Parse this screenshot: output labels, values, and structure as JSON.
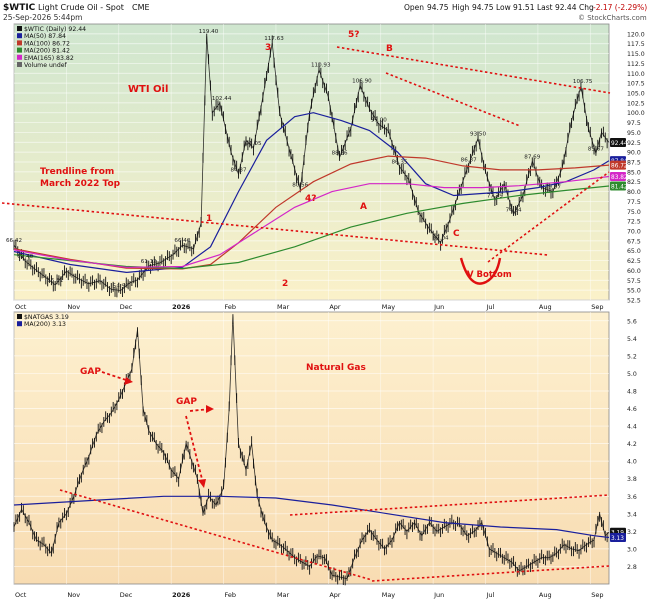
{
  "header": {
    "symbol": "$WTIC",
    "name": "Light Crude Oil - Spot",
    "exchange": "CME",
    "datetime": "25-Sep-2026 5:44pm",
    "open_label": "Open",
    "open": "94.75",
    "high_label": "High",
    "high": "94.75",
    "low_label": "Low",
    "low": "91.51",
    "last_label": "Last",
    "last": "92.44",
    "chg_label": "Chg",
    "chg": "-2.17 (-2.29%)",
    "watermark": "© StockCharts.com"
  },
  "colors": {
    "price": "#111111",
    "ma50": "#1a1f9c",
    "ma100": "#c0392b",
    "ma200": "#2e8b2e",
    "ema165": "#d426c8",
    "annot": "#e01010",
    "panel_top": "#d6ecd6",
    "panel_bot": "#fbe8c6"
  },
  "legends": {
    "top": [
      {
        "text": "$WTIC (Daily) 92.44",
        "color": "#111111"
      },
      {
        "text": "MA(50) 87.84",
        "color": "#1a1f9c"
      },
      {
        "text": "MA(100) 86.72",
        "color": "#c0392b"
      },
      {
        "text": "MA(200) 81.42",
        "color": "#2e8b2e"
      },
      {
        "text": "EMA(165) 83.82",
        "color": "#d426c8"
      },
      {
        "text": "Volume undef",
        "color": "#666666"
      }
    ],
    "bottom": [
      {
        "text": "$NATGAS 3.19",
        "color": "#111111"
      },
      {
        "text": "MA(200) 3.13",
        "color": "#1a1f9c"
      }
    ]
  },
  "x_axis": {
    "months": [
      "Oct",
      "Nov",
      "Dec",
      "2026",
      "Feb",
      "Mar",
      "Apr",
      "May",
      "Jun",
      "Jul",
      "Aug",
      "Sep"
    ]
  },
  "annotations_top": {
    "title": "WTI Oil",
    "trendline_label_1": "Trendline from",
    "trendline_label_2": "March 2022 Top",
    "wave_labels": [
      "1",
      "2",
      "3",
      "4?",
      "5?",
      "A",
      "B",
      "C"
    ],
    "v_bottom": "V Bottom"
  },
  "annotations_bottom": {
    "title": "Natural Gas",
    "gap1": "GAP",
    "gap2": "GAP"
  },
  "chart_data": [
    {
      "type": "line",
      "title": "$WTIC Light Crude Oil - Spot (Daily)",
      "ylabel": "",
      "ylim": [
        52.5,
        122.5
      ],
      "ytick_labels": [
        "52.5",
        "55.0",
        "57.5",
        "60.0",
        "62.5",
        "65.0",
        "67.5",
        "70.0",
        "72.5",
        "75.0",
        "77.5",
        "80.0",
        "82.5",
        "85.0",
        "87.5",
        "90.0",
        "92.5",
        "95.0",
        "97.5",
        "100.0",
        "102.5",
        "105.0",
        "107.5",
        "110.0",
        "112.5",
        "115.0",
        "117.5",
        "120.0"
      ],
      "price_tags": [
        {
          "value": "92.44",
          "color": "#111111"
        },
        {
          "value": "87.84",
          "color": "#1a1f9c"
        },
        {
          "value": "86.72",
          "color": "#c0392b"
        },
        {
          "value": "83.82",
          "color": "#d426c8"
        },
        {
          "value": "81.42",
          "color": "#2e8b2e"
        }
      ],
      "price_labels": [
        "66.42",
        "62.40",
        "56.31",
        "54.90",
        "61.12",
        "66.40",
        "119.40",
        "102.44",
        "84.37",
        "91.05",
        "117.63",
        "80.56",
        "110.93",
        "88.66",
        "106.90",
        "97.00",
        "86.35",
        "67.04",
        "93.50",
        "86.87",
        "77.79",
        "74.24",
        "87.69",
        "79.97",
        "106.75",
        "89.67"
      ],
      "series": [
        {
          "name": "$WTIC",
          "points": [
            [
              0,
              66.42
            ],
            [
              6,
              62.4
            ],
            [
              12,
              60.0
            ],
            [
              16,
              58.6
            ],
            [
              22,
              56.31
            ],
            [
              28,
              59.8
            ],
            [
              34,
              58.0
            ],
            [
              40,
              56.6
            ],
            [
              46,
              57.4
            ],
            [
              52,
              55.2
            ],
            [
              57,
              54.9
            ],
            [
              62,
              56.9
            ],
            [
              66,
              57.6
            ],
            [
              72,
              61.12
            ],
            [
              78,
              61.9
            ],
            [
              85,
              64.0
            ],
            [
              90,
              66.4
            ],
            [
              96,
              65.5
            ],
            [
              100,
              72.0
            ],
            [
              103,
              119.4
            ],
            [
              106,
              100.0
            ],
            [
              110,
              102.44
            ],
            [
              116,
              90.0
            ],
            [
              120,
              84.37
            ],
            [
              124,
              93.0
            ],
            [
              128,
              91.05
            ],
            [
              133,
              104.0
            ],
            [
              138,
              117.63
            ],
            [
              142,
              100.0
            ],
            [
              147,
              91.0
            ],
            [
              153,
              80.56
            ],
            [
              158,
              100.0
            ],
            [
              163,
              110.93
            ],
            [
              168,
              104.0
            ],
            [
              174,
              88.66
            ],
            [
              180,
              96.0
            ],
            [
              185,
              106.9
            ],
            [
              190,
              101.0
            ],
            [
              195,
              97.0
            ],
            [
              200,
              95.5
            ],
            [
              206,
              86.35
            ],
            [
              211,
              83.0
            ],
            [
              216,
              75.0
            ],
            [
              222,
              70.5
            ],
            [
              228,
              67.04
            ],
            [
              233,
              73.0
            ],
            [
              238,
              80.0
            ],
            [
              243,
              86.87
            ],
            [
              248,
              93.5
            ],
            [
              252,
              85.0
            ],
            [
              257,
              77.79
            ],
            [
              262,
              82.0
            ],
            [
              267,
              74.24
            ],
            [
              272,
              79.0
            ],
            [
              277,
              87.69
            ],
            [
              282,
              81.0
            ],
            [
              288,
              79.97
            ],
            [
              293,
              86.0
            ],
            [
              298,
              98.0
            ],
            [
              303,
              106.75
            ],
            [
              307,
              96.0
            ],
            [
              311,
              89.67
            ],
            [
              314,
              95.0
            ],
            [
              318,
              92.44
            ]
          ]
        },
        {
          "name": "MA(50)",
          "points": [
            [
              0,
              64.8
            ],
            [
              30,
              61.5
            ],
            [
              60,
              59.5
            ],
            [
              90,
              60.8
            ],
            [
              105,
              66.0
            ],
            [
              120,
              80.0
            ],
            [
              135,
              93.0
            ],
            [
              150,
              99.0
            ],
            [
              160,
              100.0
            ],
            [
              175,
              98.0
            ],
            [
              190,
              95.5
            ],
            [
              205,
              90.0
            ],
            [
              220,
              82.0
            ],
            [
              235,
              79.0
            ],
            [
              250,
              79.5
            ],
            [
              265,
              80.0
            ],
            [
              280,
              81.0
            ],
            [
              295,
              82.5
            ],
            [
              310,
              85.5
            ],
            [
              318,
              87.84
            ]
          ]
        },
        {
          "name": "MA(100)",
          "points": [
            [
              0,
              65.5
            ],
            [
              30,
              62.8
            ],
            [
              60,
              60.6
            ],
            [
              90,
              60.4
            ],
            [
              105,
              61.5
            ],
            [
              120,
              67.0
            ],
            [
              140,
              76.0
            ],
            [
              160,
              82.5
            ],
            [
              180,
              87.0
            ],
            [
              200,
              89.0
            ],
            [
              220,
              88.5
            ],
            [
              240,
              86.5
            ],
            [
              260,
              85.5
            ],
            [
              280,
              85.5
            ],
            [
              300,
              86.0
            ],
            [
              318,
              86.72
            ]
          ]
        },
        {
          "name": "MA(200)",
          "points": [
            [
              0,
              64.0
            ],
            [
              30,
              62.5
            ],
            [
              60,
              61.0
            ],
            [
              90,
              60.5
            ],
            [
              120,
              62.0
            ],
            [
              150,
              66.0
            ],
            [
              180,
              71.0
            ],
            [
              210,
              74.5
            ],
            [
              240,
              77.0
            ],
            [
              270,
              79.0
            ],
            [
              295,
              80.3
            ],
            [
              318,
              81.42
            ]
          ]
        },
        {
          "name": "EMA(165)",
          "points": [
            [
              0,
              65.2
            ],
            [
              30,
              62.6
            ],
            [
              60,
              60.8
            ],
            [
              90,
              61.0
            ],
            [
              110,
              64.0
            ],
            [
              130,
              70.0
            ],
            [
              150,
              76.0
            ],
            [
              170,
              80.0
            ],
            [
              190,
              82.0
            ],
            [
              210,
              82.0
            ],
            [
              230,
              81.0
            ],
            [
              250,
              81.0
            ],
            [
              270,
              81.5
            ],
            [
              295,
              82.5
            ],
            [
              318,
              83.82
            ]
          ]
        }
      ]
    },
    {
      "type": "line",
      "title": "$NATGAS",
      "ylabel": "",
      "ylim": [
        2.6,
        5.7
      ],
      "ytick_labels": [
        "2.8",
        "3.0",
        "3.2",
        "3.4",
        "3.6",
        "3.8",
        "4.0",
        "4.2",
        "4.4",
        "4.6",
        "4.8",
        "5.0",
        "5.2",
        "5.4",
        "5.6"
      ],
      "price_tags": [
        {
          "value": "3.19",
          "color": "#111111"
        },
        {
          "value": "3.13",
          "color": "#1a1f9c"
        }
      ],
      "series": [
        {
          "name": "$NATGAS",
          "points": [
            [
              0,
              3.25
            ],
            [
              4,
              3.45
            ],
            [
              8,
              3.3
            ],
            [
              12,
              3.1
            ],
            [
              16,
              3.05
            ],
            [
              20,
              2.95
            ],
            [
              24,
              3.3
            ],
            [
              28,
              3.4
            ],
            [
              32,
              3.6
            ],
            [
              36,
              3.85
            ],
            [
              40,
              4.05
            ],
            [
              44,
              4.3
            ],
            [
              48,
              4.45
            ],
            [
              52,
              4.55
            ],
            [
              56,
              4.7
            ],
            [
              60,
              4.9
            ],
            [
              63,
              5.05
            ],
            [
              66,
              5.5
            ],
            [
              69,
              4.6
            ],
            [
              72,
              4.35
            ],
            [
              76,
              4.2
            ],
            [
              80,
              4.1
            ],
            [
              84,
              3.9
            ],
            [
              88,
              3.8
            ],
            [
              92,
              4.2
            ],
            [
              95,
              4.0
            ],
            [
              98,
              3.8
            ],
            [
              101,
              3.4
            ],
            [
              104,
              3.6
            ],
            [
              108,
              3.5
            ],
            [
              112,
              3.7
            ],
            [
              115,
              4.6
            ],
            [
              117,
              5.65
            ],
            [
              120,
              4.2
            ],
            [
              124,
              3.9
            ],
            [
              127,
              4.2
            ],
            [
              130,
              3.6
            ],
            [
              134,
              3.3
            ],
            [
              138,
              3.1
            ],
            [
              142,
              3.05
            ],
            [
              146,
              2.98
            ],
            [
              150,
              2.9
            ],
            [
              154,
              2.85
            ],
            [
              158,
              2.8
            ],
            [
              162,
              2.92
            ],
            [
              166,
              2.9
            ],
            [
              170,
              2.7
            ],
            [
              174,
              2.68
            ],
            [
              178,
              2.66
            ],
            [
              182,
              2.9
            ],
            [
              186,
              3.1
            ],
            [
              190,
              3.22
            ],
            [
              194,
              3.1
            ],
            [
              198,
              3.0
            ],
            [
              202,
              3.1
            ],
            [
              206,
              3.3
            ],
            [
              210,
              3.2
            ],
            [
              214,
              3.3
            ],
            [
              218,
              3.15
            ],
            [
              222,
              3.3
            ],
            [
              226,
              3.2
            ],
            [
              230,
              3.25
            ],
            [
              234,
              3.3
            ],
            [
              238,
              3.28
            ],
            [
              242,
              3.15
            ],
            [
              246,
              3.2
            ],
            [
              250,
              3.3
            ],
            [
              254,
              3.0
            ],
            [
              258,
              2.95
            ],
            [
              262,
              2.9
            ],
            [
              266,
              2.85
            ],
            [
              270,
              2.75
            ],
            [
              274,
              2.8
            ],
            [
              278,
              2.85
            ],
            [
              282,
              2.9
            ],
            [
              286,
              2.9
            ],
            [
              290,
              2.95
            ],
            [
              294,
              3.05
            ],
            [
              298,
              3.0
            ],
            [
              302,
              2.98
            ],
            [
              306,
              3.05
            ],
            [
              310,
              3.1
            ],
            [
              313,
              3.4
            ],
            [
              316,
              3.15
            ],
            [
              318,
              3.19
            ]
          ]
        },
        {
          "name": "MA(200)",
          "points": [
            [
              0,
              3.5
            ],
            [
              40,
              3.55
            ],
            [
              80,
              3.6
            ],
            [
              110,
              3.6
            ],
            [
              140,
              3.58
            ],
            [
              170,
              3.5
            ],
            [
              200,
              3.4
            ],
            [
              230,
              3.3
            ],
            [
              260,
              3.25
            ],
            [
              290,
              3.22
            ],
            [
              310,
              3.15
            ],
            [
              318,
              3.13
            ]
          ]
        }
      ]
    }
  ]
}
